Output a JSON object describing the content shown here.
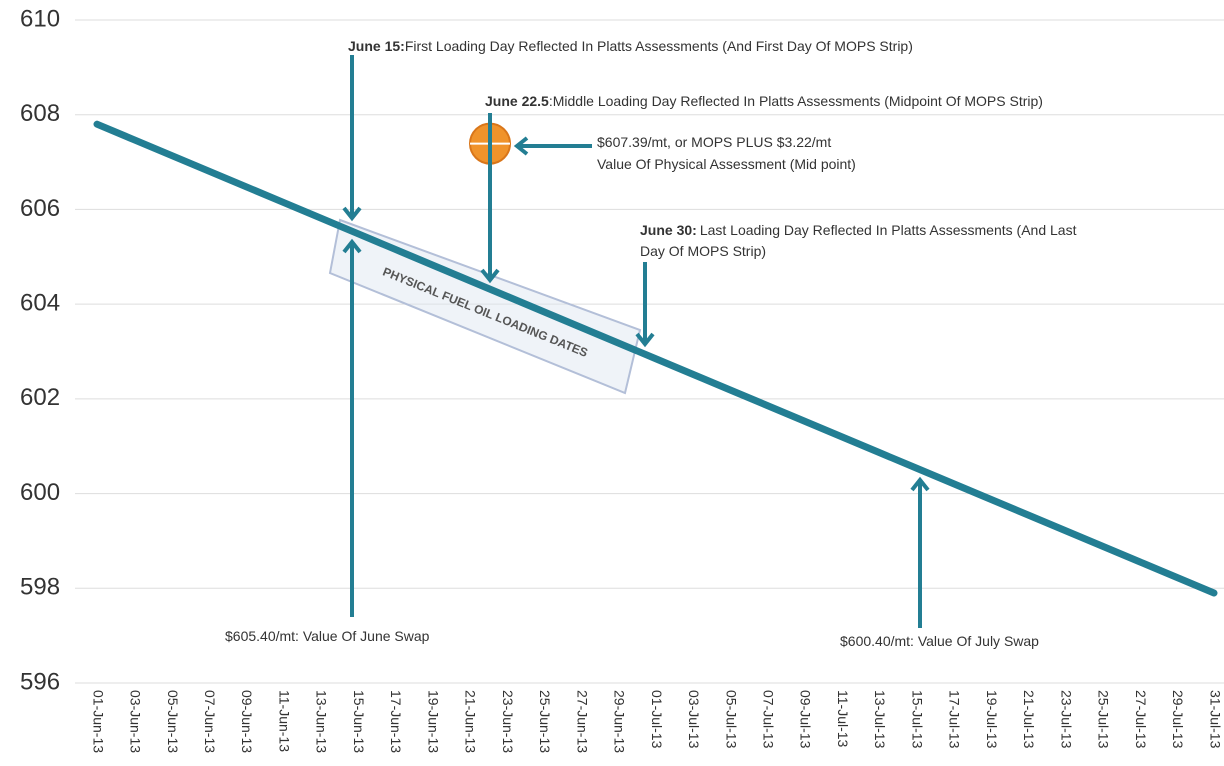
{
  "chart_data": {
    "type": "line",
    "categories": [
      "01-Jun-13",
      "03-Jun-13",
      "05-Jun-13",
      "07-Jun-13",
      "09-Jun-13",
      "11-Jun-13",
      "13-Jun-13",
      "15-Jun-13",
      "17-Jun-13",
      "19-Jun-13",
      "21-Jun-13",
      "23-Jun-13",
      "25-Jun-13",
      "27-Jun-13",
      "29-Jun-13",
      "01-Jul-13",
      "03-Jul-13",
      "05-Jul-13",
      "07-Jul-13",
      "09-Jul-13",
      "11-Jul-13",
      "13-Jul-13",
      "15-Jul-13",
      "17-Jul-13",
      "19-Jul-13",
      "21-Jul-13",
      "23-Jul-13",
      "25-Jul-13",
      "27-Jul-13",
      "29-Jul-13",
      "31-Jul-13"
    ],
    "series": [
      {
        "color": "#237e93",
        "values": [
          607.8,
          607.47,
          607.14,
          606.81,
          606.48,
          606.15,
          605.82,
          605.49,
          605.16,
          604.83,
          604.5,
          604.17,
          603.84,
          603.51,
          603.18,
          602.85,
          602.52,
          602.19,
          601.86,
          601.53,
          601.2,
          600.87,
          600.54,
          600.21,
          599.88,
          599.55,
          599.22,
          598.89,
          598.56,
          598.23,
          597.9
        ]
      }
    ],
    "ylim": [
      596,
      610
    ],
    "yticks": [
      596,
      598,
      600,
      602,
      604,
      606,
      608,
      610
    ],
    "grid": true,
    "marker": {
      "value": 607.39,
      "color": "#f0932b"
    },
    "box_label": "PHYSICAL FUEL OIL LOADING DATES",
    "annotations": [
      {
        "bold": "June 15:",
        "text": "First Loading Day Reflected In Platts Assessments (And First Day Of MOPS Strip)"
      },
      {
        "bold": "June 22.5",
        "text": ":Middle Loading Day Reflected In Platts Assessments (Midpoint Of MOPS Strip)"
      },
      {
        "lines": [
          "$607.39/mt, or MOPS PLUS $3.22/mt",
          "Value Of Physical Assessment (Mid point)"
        ]
      },
      {
        "bold": "June 30:",
        "text": "Last Loading Day Reflected In Platts Assessments (And Last",
        "lines": [
          "Day Of MOPS Strip)"
        ]
      },
      {
        "lines": [
          "$605.40/mt: Value Of June Swap"
        ]
      },
      {
        "lines": [
          "$600.40/mt: Value Of July Swap"
        ]
      }
    ]
  }
}
